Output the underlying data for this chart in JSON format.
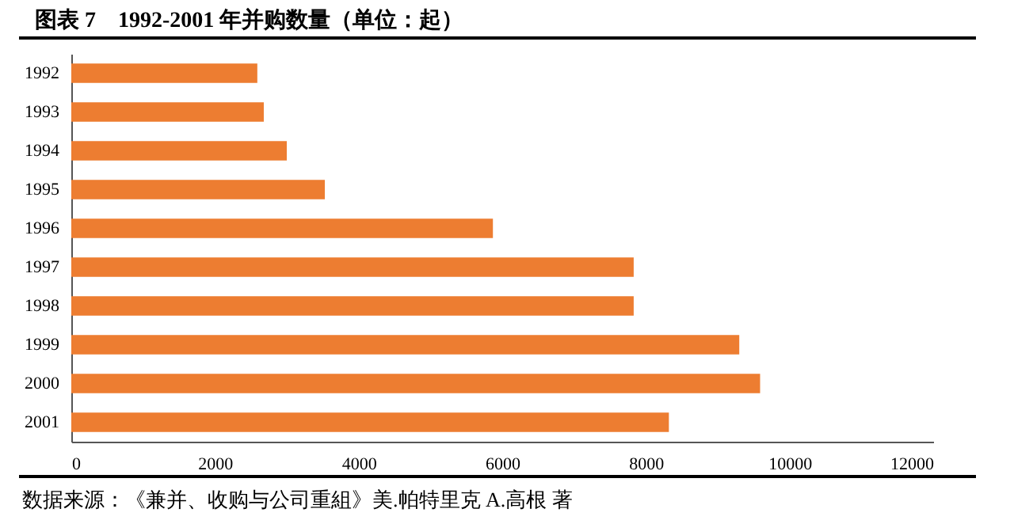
{
  "chart_data": {
    "type": "bar",
    "orientation": "horizontal",
    "title": "图表 7　1992-2001 年并购数量（单位：起）",
    "categories": [
      "1992",
      "1993",
      "1994",
      "1995",
      "1996",
      "1997",
      "1998",
      "1999",
      "2000",
      "2001"
    ],
    "values": [
      2590,
      2680,
      3000,
      3530,
      5870,
      7830,
      7830,
      9300,
      9590,
      8320
    ],
    "color": "#ed7d31",
    "xlim": [
      0,
      12000
    ],
    "xticks": [
      0,
      2000,
      4000,
      6000,
      8000,
      10000,
      12000
    ],
    "grid": false,
    "annotations": [
      "数据来源：《兼并、收购与公司重組》美.帕特里克 A.高根 著"
    ]
  }
}
